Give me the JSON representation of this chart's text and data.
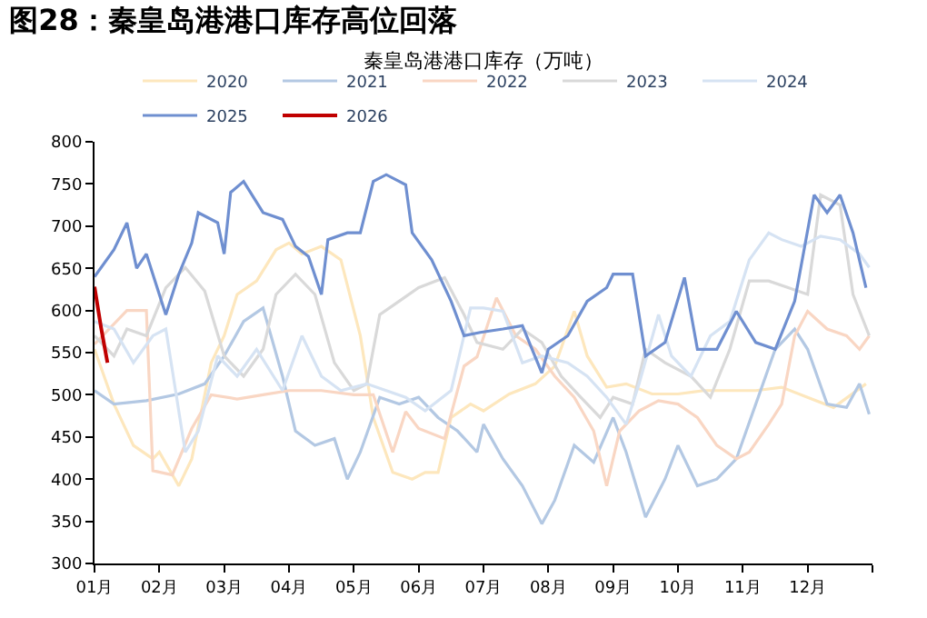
{
  "chart_data": {
    "type": "line",
    "title": "图28：秦皇岛港港口库存高位回落",
    "subtitle": "秦皇岛港港口库存（万吨）",
    "xlim": [
      1,
      13
    ],
    "xticks": [
      {
        "value": 1,
        "label": "01月"
      },
      {
        "value": 2,
        "label": "02月"
      },
      {
        "value": 3,
        "label": "03月"
      },
      {
        "value": 4,
        "label": "04月"
      },
      {
        "value": 5,
        "label": "05月"
      },
      {
        "value": 6,
        "label": "06月"
      },
      {
        "value": 7,
        "label": "07月"
      },
      {
        "value": 8,
        "label": "08月"
      },
      {
        "value": 9,
        "label": "09月"
      },
      {
        "value": 10,
        "label": "10月"
      },
      {
        "value": 11,
        "label": "11月"
      },
      {
        "value": 12,
        "label": "12月"
      },
      {
        "value": 13,
        "label": null
      }
    ],
    "ylim": [
      300,
      800
    ],
    "yticks": [
      300,
      350,
      400,
      450,
      500,
      550,
      600,
      650,
      700,
      750,
      800
    ],
    "grid": false,
    "legend": "top",
    "marker": "none",
    "line_style": "solid",
    "series": [
      {
        "name": "2020",
        "color": "#fde7bd",
        "x": [
          1,
          1.3,
          1.6,
          1.9,
          2.0,
          2.3,
          2.5,
          2.8,
          3.0,
          3.2,
          3.5,
          3.8,
          4.0,
          4.2,
          4.5,
          4.8,
          5.1,
          5.3,
          5.6,
          5.9,
          6.1,
          6.3,
          6.5,
          6.8,
          7.0,
          7.4,
          7.8,
          8.1,
          8.4,
          8.6,
          8.9,
          9.2,
          9.6,
          10.0,
          10.4,
          10.8,
          11.2,
          11.6,
          12.0,
          12.4,
          12.9
        ],
        "values": [
          554,
          489,
          440,
          424,
          432,
          392,
          424,
          538,
          570,
          619,
          635,
          672,
          680,
          667,
          676,
          660,
          570,
          473,
          408,
          400,
          408,
          408,
          473,
          489,
          481,
          501,
          513,
          534,
          599,
          546,
          509,
          513,
          501,
          501,
          505,
          505,
          505,
          509,
          497,
          485,
          513
        ]
      },
      {
        "name": "2021",
        "color": "#b3c8e3",
        "x": [
          1,
          1.3,
          1.8,
          2.3,
          2.7,
          3.0,
          3.3,
          3.6,
          3.9,
          4.1,
          4.4,
          4.7,
          4.9,
          5.1,
          5.4,
          5.7,
          6.0,
          6.3,
          6.6,
          6.9,
          7.0,
          7.3,
          7.6,
          7.9,
          8.1,
          8.4,
          8.7,
          9.0,
          9.2,
          9.5,
          9.8,
          10.0,
          10.3,
          10.6,
          10.9,
          11.2,
          11.5,
          11.8,
          12.0,
          12.3,
          12.6,
          12.8,
          12.95
        ],
        "values": [
          505,
          489,
          493,
          501,
          513,
          546,
          587,
          603,
          522,
          457,
          440,
          448,
          400,
          432,
          497,
          489,
          497,
          473,
          457,
          432,
          465,
          424,
          392,
          347,
          375,
          440,
          420,
          473,
          432,
          355,
          400,
          440,
          392,
          400,
          424,
          489,
          554,
          578,
          554,
          489,
          485,
          513,
          477
        ]
      },
      {
        "name": "2022",
        "color": "#f9d6c3",
        "x": [
          1,
          1.5,
          1.8,
          1.9,
          2.2,
          2.5,
          2.8,
          3.2,
          3.6,
          4.0,
          4.5,
          5.0,
          5.3,
          5.6,
          5.8,
          6.0,
          6.4,
          6.7,
          6.9,
          7.2,
          7.5,
          7.8,
          8.1,
          8.4,
          8.7,
          8.9,
          9.1,
          9.4,
          9.7,
          10.0,
          10.3,
          10.6,
          10.9,
          11.1,
          11.4,
          11.6,
          11.8,
          12.0,
          12.3,
          12.6,
          12.8,
          12.95
        ],
        "values": [
          560,
          600,
          600,
          410,
          405,
          460,
          500,
          495,
          500,
          505,
          505,
          500,
          500,
          432,
          480,
          460,
          448,
          534,
          545,
          615,
          570,
          554,
          522,
          497,
          457,
          392,
          457,
          481,
          493,
          489,
          473,
          440,
          424,
          432,
          465,
          489,
          570,
          599,
          578,
          570,
          554,
          570
        ]
      },
      {
        "name": "2023",
        "color": "#d9d9d9",
        "x": [
          1,
          1.3,
          1.5,
          1.8,
          2.1,
          2.4,
          2.7,
          3.0,
          3.3,
          3.6,
          3.8,
          4.1,
          4.4,
          4.7,
          5.0,
          5.2,
          5.4,
          5.7,
          6.0,
          6.4,
          6.7,
          6.9,
          7.3,
          7.6,
          7.9,
          8.2,
          8.5,
          8.8,
          9.0,
          9.3,
          9.5,
          9.8,
          10.2,
          10.5,
          10.8,
          11.1,
          11.4,
          11.7,
          12.0,
          12.2,
          12.5,
          12.7,
          12.95
        ],
        "values": [
          570,
          546,
          578,
          570,
          627,
          651,
          623,
          546,
          522,
          554,
          619,
          643,
          619,
          538,
          505,
          513,
          595,
          611,
          627,
          639,
          595,
          562,
          554,
          578,
          562,
          522,
          497,
          473,
          497,
          489,
          554,
          538,
          522,
          497,
          554,
          635,
          635,
          627,
          619,
          737,
          725,
          619,
          570
        ]
      },
      {
        "name": "2024",
        "color": "#d6e3f3",
        "x": [
          1,
          1.3,
          1.6,
          1.9,
          2.1,
          2.4,
          2.6,
          2.9,
          3.2,
          3.5,
          3.9,
          4.2,
          4.5,
          4.8,
          5.2,
          5.5,
          5.8,
          6.1,
          6.5,
          6.8,
          7.0,
          7.3,
          7.6,
          7.9,
          8.3,
          8.6,
          8.9,
          9.2,
          9.4,
          9.7,
          9.9,
          10.2,
          10.5,
          10.8,
          11.1,
          11.4,
          11.6,
          11.9,
          12.2,
          12.5,
          12.8,
          12.95
        ],
        "values": [
          587,
          578,
          538,
          570,
          578,
          432,
          457,
          546,
          522,
          554,
          505,
          570,
          522,
          505,
          513,
          505,
          497,
          481,
          505,
          603,
          603,
          599,
          538,
          546,
          538,
          522,
          497,
          465,
          513,
          595,
          546,
          522,
          570,
          587,
          660,
          692,
          684,
          676,
          688,
          684,
          667,
          651
        ]
      },
      {
        "name": "2025",
        "color": "#6f8fd0",
        "x": [
          1,
          1.3,
          1.5,
          1.65,
          1.8,
          2.1,
          2.3,
          2.5,
          2.6,
          2.9,
          3.0,
          3.1,
          3.3,
          3.6,
          3.9,
          4.1,
          4.3,
          4.5,
          4.6,
          4.9,
          5.1,
          5.3,
          5.5,
          5.8,
          5.9,
          6.2,
          6.5,
          6.7,
          6.95,
          7.3,
          7.6,
          7.9,
          8.0,
          8.3,
          8.6,
          8.9,
          9.0,
          9.3,
          9.5,
          9.8,
          10.1,
          10.3,
          10.6,
          10.9,
          11.2,
          11.5,
          11.8,
          12.1,
          12.3,
          12.5,
          12.7,
          12.9
        ],
        "values": [
          640,
          672,
          704,
          650,
          667,
          595,
          643,
          680,
          716,
          704,
          667,
          740,
          753,
          716,
          708,
          676,
          664,
          619,
          684,
          692,
          692,
          753,
          761,
          749,
          692,
          660,
          611,
          570,
          574,
          578,
          582,
          526,
          554,
          570,
          611,
          627,
          643,
          643,
          546,
          562,
          639,
          554,
          554,
          599,
          562,
          554,
          611,
          737,
          716,
          737,
          692,
          627
        ]
      },
      {
        "name": "2026",
        "color": "#c00000",
        "x": [
          1,
          1.1,
          1.2
        ],
        "values": [
          628,
          580,
          538
        ]
      }
    ]
  }
}
